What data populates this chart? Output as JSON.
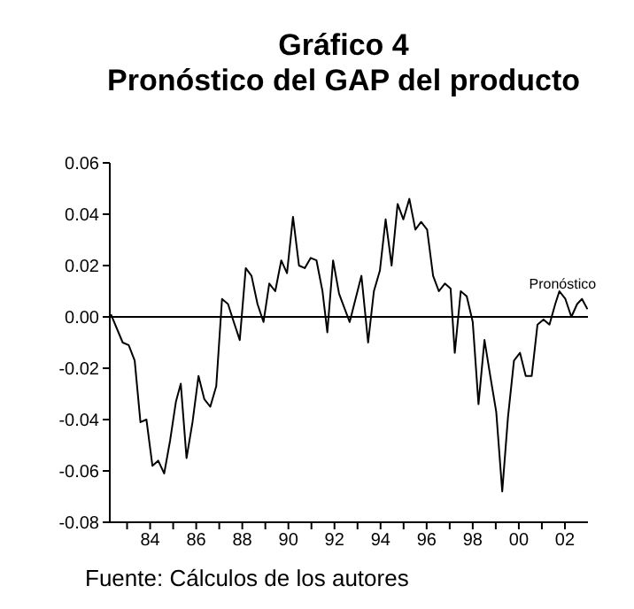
{
  "chart_data": {
    "type": "line",
    "title": "Gráfico 4",
    "subtitle": "Pronóstico del GAP del producto",
    "annotations": [
      {
        "text": "Pronóstico",
        "x": 2001.9,
        "y": 0.013
      },
      "Fuente: Cálculos de los autores"
    ],
    "x": [
      1982.3,
      1982.81,
      1983.07,
      1983.33,
      1983.58,
      1983.84,
      1984.1,
      1984.35,
      1984.61,
      1984.87,
      1985.12,
      1985.33,
      1985.58,
      1985.84,
      1986.1,
      1986.35,
      1986.61,
      1986.87,
      1987.12,
      1987.38,
      1987.63,
      1987.89,
      1988.15,
      1988.4,
      1988.66,
      1988.92,
      1989.17,
      1989.43,
      1989.69,
      1989.94,
      1990.2,
      1990.46,
      1990.71,
      1990.97,
      1991.22,
      1991.48,
      1991.69,
      1991.94,
      1992.2,
      1992.66,
      1993.17,
      1993.46,
      1993.71,
      1993.97,
      1994.22,
      1994.48,
      1994.74,
      1994.99,
      1995.25,
      1995.51,
      1995.76,
      1996.02,
      1996.28,
      1996.53,
      1996.79,
      1997.04,
      1997.22,
      1997.48,
      1997.74,
      1998.0,
      1998.25,
      1998.51,
      1998.76,
      1999.02,
      1999.28,
      1999.53,
      1999.79,
      2000.05,
      2000.3,
      2000.56,
      2000.81,
      2001.07,
      2001.33,
      2001.58,
      2001.76,
      2002.02,
      2002.28,
      2002.53,
      2002.74,
      2002.98
    ],
    "series": [
      {
        "color": "#000000",
        "values": [
          0.001,
          -0.01,
          -0.011,
          -0.017,
          -0.041,
          -0.04,
          -0.058,
          -0.056,
          -0.061,
          -0.048,
          -0.033,
          -0.026,
          -0.055,
          -0.041,
          -0.023,
          -0.032,
          -0.035,
          -0.027,
          0.007,
          0.005,
          -0.002,
          -0.009,
          0.019,
          0.016,
          0.005,
          -0.002,
          0.013,
          0.01,
          0.022,
          0.017,
          0.039,
          0.02,
          0.019,
          0.023,
          0.022,
          0.01,
          -0.006,
          0.022,
          0.009,
          -0.002,
          0.016,
          -0.01,
          0.01,
          0.018,
          0.038,
          0.02,
          0.044,
          0.038,
          0.046,
          0.034,
          0.037,
          0.034,
          0.016,
          0.01,
          0.013,
          0.011,
          -0.014,
          0.01,
          0.008,
          -0.002,
          -0.034,
          -0.009,
          -0.023,
          -0.037,
          -0.068,
          -0.039,
          -0.017,
          -0.014,
          -0.023,
          -0.023,
          -0.003,
          -0.001,
          -0.003,
          0.005,
          0.01,
          0.007,
          0.0,
          0.005,
          0.007,
          0.003
        ]
      }
    ],
    "xlim": [
      1982.25,
      2003
    ],
    "xticks": [
      {
        "value": 1983,
        "label": null
      },
      {
        "value": 1984,
        "label": "84"
      },
      {
        "value": 1985,
        "label": null
      },
      {
        "value": 1986,
        "label": "86"
      },
      {
        "value": 1987,
        "label": null
      },
      {
        "value": 1988,
        "label": "88"
      },
      {
        "value": 1989,
        "label": null
      },
      {
        "value": 1990,
        "label": "90"
      },
      {
        "value": 1991,
        "label": null
      },
      {
        "value": 1992,
        "label": "92"
      },
      {
        "value": 1993,
        "label": null
      },
      {
        "value": 1994,
        "label": "94"
      },
      {
        "value": 1995,
        "label": null
      },
      {
        "value": 1996,
        "label": "96"
      },
      {
        "value": 1997,
        "label": null
      },
      {
        "value": 1998,
        "label": "98"
      },
      {
        "value": 1999,
        "label": null
      },
      {
        "value": 2000,
        "label": "00"
      },
      {
        "value": 2001,
        "label": null
      },
      {
        "value": 2002,
        "label": "02"
      }
    ],
    "ylim": [
      -0.08,
      0.06
    ],
    "yticks": [
      {
        "value": -0.08,
        "label": "-0.08"
      },
      {
        "value": -0.06,
        "label": "-0.06"
      },
      {
        "value": -0.04,
        "label": "-0.04"
      },
      {
        "value": -0.02,
        "label": "-0.02"
      },
      {
        "value": 0,
        "label": "0.00"
      },
      {
        "value": 0.02,
        "label": "0.02"
      },
      {
        "value": 0.04,
        "label": "0.04"
      },
      {
        "value": 0.06,
        "label": "0.06"
      }
    ],
    "ref_lines": [
      {
        "axis": "y",
        "value": 0,
        "color": "#000000"
      }
    ],
    "grid": false,
    "legend": false,
    "marker": "none",
    "line_style": "solid"
  }
}
